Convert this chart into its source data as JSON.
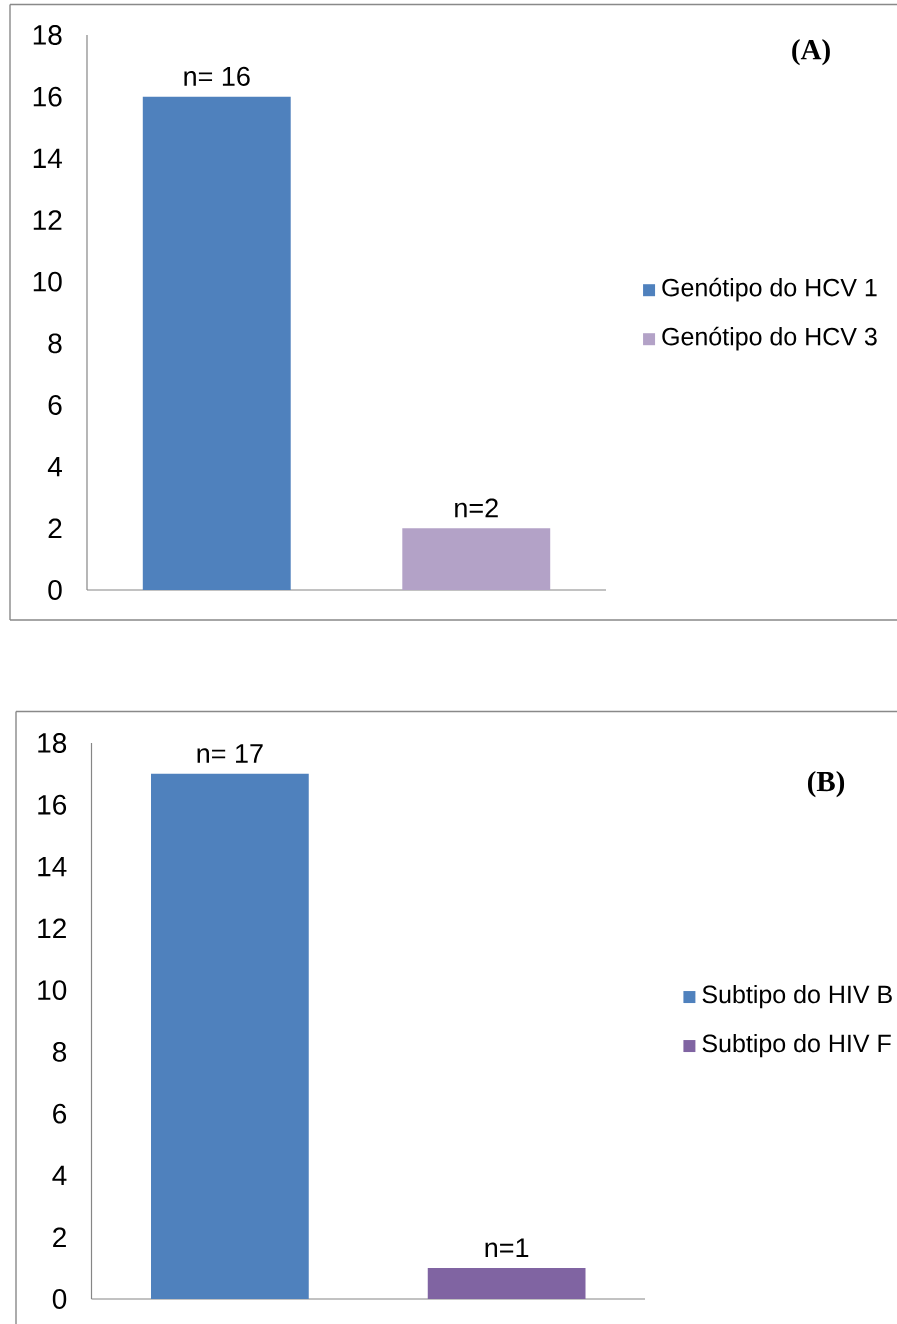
{
  "chart_data": [
    {
      "type": "bar",
      "annotations": [
        "(A)"
      ],
      "categories": [
        null,
        null
      ],
      "series": [
        {
          "name": "Genótipo do HCV 1",
          "color": "#4f81bd",
          "values": [
            16,
            null
          ],
          "value_labels": [
            "n= 16",
            null
          ]
        },
        {
          "name": "Genótipo do HCV 3",
          "color": "#b3a2c7",
          "values": [
            null,
            2
          ],
          "value_labels": [
            null,
            "n=2"
          ]
        }
      ],
      "ylim": [
        0,
        18
      ],
      "yticks": [
        0,
        2,
        4,
        6,
        8,
        10,
        12,
        14,
        16,
        18
      ],
      "legend": "right",
      "tick_labels": "y"
    },
    {
      "type": "bar",
      "annotations": [
        "(B)"
      ],
      "categories": [
        null,
        null
      ],
      "series": [
        {
          "name": "Subtipo do HIV B",
          "color": "#4f81bd",
          "values": [
            17,
            null
          ],
          "value_labels": [
            "n= 17",
            null
          ]
        },
        {
          "name": "Subtipo do HIV F",
          "color": "#8064a2",
          "values": [
            null,
            1
          ],
          "value_labels": [
            null,
            "n=1"
          ]
        }
      ],
      "ylim": [
        0,
        18
      ],
      "yticks": [
        0,
        2,
        4,
        6,
        8,
        10,
        12,
        14,
        16,
        18
      ],
      "legend": "right",
      "tick_labels": "y"
    }
  ]
}
